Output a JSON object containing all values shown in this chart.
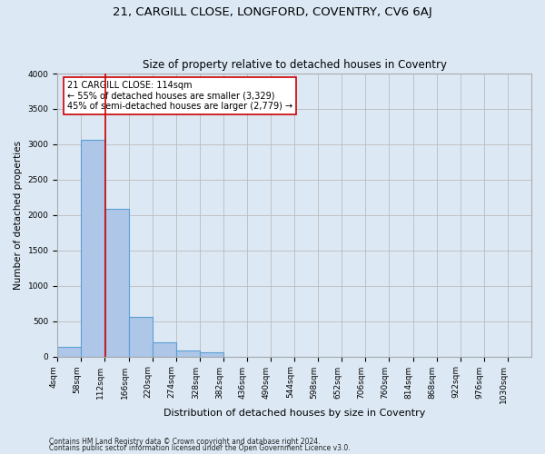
{
  "title": "21, CARGILL CLOSE, LONGFORD, COVENTRY, CV6 6AJ",
  "subtitle": "Size of property relative to detached houses in Coventry",
  "xlabel": "Distribution of detached houses by size in Coventry",
  "ylabel": "Number of detached properties",
  "bins": [
    4,
    58,
    112,
    166,
    220,
    274,
    328,
    382,
    436,
    490,
    544,
    598,
    652,
    706,
    760,
    814,
    868,
    922,
    976,
    1030,
    1084
  ],
  "bar_heights": [
    130,
    3060,
    2090,
    555,
    200,
    80,
    55,
    0,
    0,
    0,
    0,
    0,
    0,
    0,
    0,
    0,
    0,
    0,
    0,
    0
  ],
  "bar_color": "#aec6e8",
  "bar_edge_color": "#5a9fd4",
  "bar_edge_width": 0.8,
  "grid_color": "#bbbbbb",
  "property_line_x": 114,
  "property_line_color": "#cc0000",
  "annotation_line1": "21 CARGILL CLOSE: 114sqm",
  "annotation_line2": "← 55% of detached houses are smaller (3,329)",
  "annotation_line3": "45% of semi-detached houses are larger (2,779) →",
  "annotation_box_color": "#ffffff",
  "annotation_box_edge_color": "#cc0000",
  "ylim": [
    0,
    4000
  ],
  "yticks": [
    0,
    500,
    1000,
    1500,
    2000,
    2500,
    3000,
    3500,
    4000
  ],
  "footnote1": "Contains HM Land Registry data © Crown copyright and database right 2024.",
  "footnote2": "Contains public sector information licensed under the Open Government Licence v3.0.",
  "background_color": "#dce9f5",
  "title_fontsize": 9.5,
  "subtitle_fontsize": 8.5,
  "xlabel_fontsize": 8,
  "ylabel_fontsize": 7.5,
  "tick_fontsize": 6.5,
  "annotation_fontsize": 7,
  "footnote_fontsize": 5.5
}
